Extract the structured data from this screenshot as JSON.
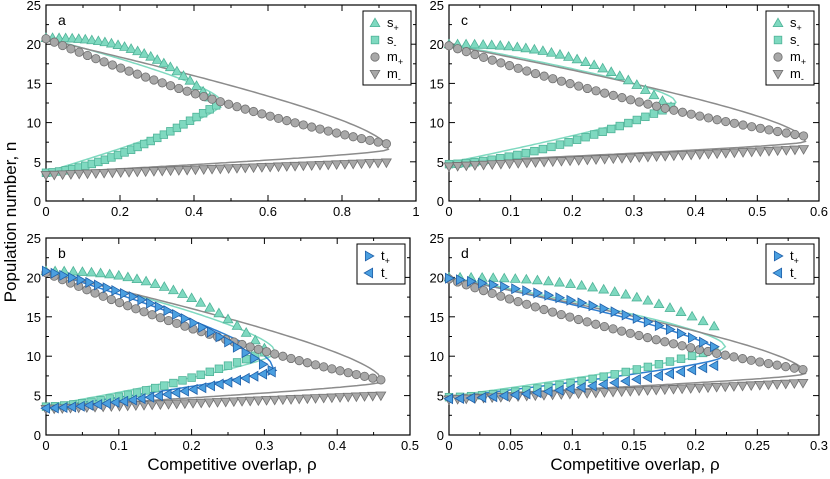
{
  "figure": {
    "ylabel": "Population number, n",
    "xlabel": "Competitive overlap, ρ"
  },
  "colors": {
    "teal": "#7fd9c0",
    "teal_stroke": "#4fb398",
    "gray": "#a8a8a8",
    "gray_stroke": "#707070",
    "gray_line": "#8c8c8c",
    "blue": "#4a9fe0",
    "blue_stroke": "#1f5fa8",
    "blue_line": "#2f7fd0"
  },
  "chart_data": [
    {
      "id": "a",
      "type": "scatter",
      "letter": "a",
      "xlim": [
        0,
        1
      ],
      "ylim": [
        0,
        25
      ],
      "xticks": [
        0,
        0.2,
        0.4,
        0.6,
        0.8,
        1
      ],
      "xtick_labels": [
        "0",
        "0.2",
        "0.4",
        "0.6",
        "0.8",
        "1"
      ],
      "yticks": [
        0,
        5,
        10,
        15,
        20,
        25
      ],
      "ytick_labels": [
        "0",
        "5",
        "10",
        "15",
        "20",
        "25"
      ],
      "series": [
        {
          "key": "s_plus",
          "label": "s",
          "sub": "+",
          "marker": "triangle-up",
          "color": "teal",
          "values": {
            "n": 27,
            "x0": 0,
            "x1": 0.46,
            "y0": 20.8,
            "y1": 12.4,
            "shape": "upper"
          }
        },
        {
          "key": "s_minus",
          "label": "s",
          "sub": "-",
          "marker": "square",
          "color": "teal",
          "values": {
            "n": 27,
            "x0": 0,
            "x1": 0.46,
            "y0": 3.6,
            "y1": 12.2,
            "shape": "lower"
          }
        },
        {
          "key": "m_plus",
          "label": "m",
          "sub": "+",
          "marker": "circle",
          "color": "gray",
          "values": {
            "n": 42,
            "x0": 0,
            "x1": 0.92,
            "y0": 20.7,
            "y1": 7.3,
            "shape": "decay"
          }
        },
        {
          "key": "m_minus",
          "label": "m",
          "sub": "-",
          "marker": "triangle-down",
          "color": "gray",
          "values": {
            "n": 42,
            "x0": 0,
            "x1": 0.92,
            "y0": 3.3,
            "y1": 4.9,
            "shape": "linear"
          }
        }
      ],
      "curves": [
        {
          "color": "teal",
          "x0": 0,
          "turn": 0.475,
          "y_up": 20.8,
          "y_lo": 3.7,
          "y_turn": 12.5
        },
        {
          "color": "gray",
          "x0": 0,
          "turn": 0.925,
          "y_up": 20.6,
          "y_lo": 3.6,
          "y_turn": 6.6
        }
      ],
      "legend": [
        "s_plus",
        "s_minus",
        "m_plus",
        "m_minus"
      ]
    },
    {
      "id": "c",
      "type": "scatter",
      "letter": "c",
      "xlim": [
        0,
        0.6
      ],
      "ylim": [
        0,
        25
      ],
      "xticks": [
        0,
        0.1,
        0.2,
        0.3,
        0.4,
        0.5,
        0.6
      ],
      "xtick_labels": [
        "0",
        "0.1",
        "0.2",
        "0.3",
        "0.4",
        "0.5",
        "0.6"
      ],
      "yticks": [
        0,
        5,
        10,
        15,
        20,
        25
      ],
      "ytick_labels": [
        "0",
        "5",
        "10",
        "15",
        "20",
        "25"
      ],
      "series": [
        {
          "key": "s_plus",
          "label": "s",
          "sub": "+",
          "marker": "triangle-up",
          "color": "teal",
          "values": {
            "n": 27,
            "x0": 0,
            "x1": 0.36,
            "y0": 20.0,
            "y1": 12.0,
            "shape": "upper"
          }
        },
        {
          "key": "s_minus",
          "label": "s",
          "sub": "-",
          "marker": "square",
          "color": "teal",
          "values": {
            "n": 27,
            "x0": 0,
            "x1": 0.36,
            "y0": 4.7,
            "y1": 12.0,
            "shape": "lower"
          }
        },
        {
          "key": "m_plus",
          "label": "m",
          "sub": "+",
          "marker": "circle",
          "color": "gray",
          "values": {
            "n": 42,
            "x0": 0,
            "x1": 0.575,
            "y0": 19.8,
            "y1": 8.3,
            "shape": "decay"
          }
        },
        {
          "key": "m_minus",
          "label": "m",
          "sub": "-",
          "marker": "triangle-down",
          "color": "gray",
          "values": {
            "n": 42,
            "x0": 0,
            "x1": 0.575,
            "y0": 4.4,
            "y1": 6.6,
            "shape": "linear"
          }
        }
      ],
      "curves": [
        {
          "color": "teal",
          "x0": 0,
          "turn": 0.368,
          "y_up": 20.0,
          "y_lo": 4.9,
          "y_turn": 12.6
        },
        {
          "color": "gray",
          "x0": 0,
          "turn": 0.578,
          "y_up": 19.9,
          "y_lo": 5.0,
          "y_turn": 7.6
        }
      ],
      "legend": [
        "s_plus",
        "s_minus",
        "m_plus",
        "m_minus"
      ]
    },
    {
      "id": "b",
      "type": "scatter",
      "letter": "b",
      "xlim": [
        0,
        0.5
      ],
      "ylim": [
        0,
        25
      ],
      "xticks": [
        0,
        0.1,
        0.2,
        0.3,
        0.4,
        0.5
      ],
      "xtick_labels": [
        "0",
        "0.1",
        "0.2",
        "0.3",
        "0.4",
        "0.5"
      ],
      "yticks": [
        0,
        5,
        10,
        15,
        20,
        25
      ],
      "ytick_labels": [
        "0",
        "5",
        "10",
        "15",
        "20",
        "25"
      ],
      "series": [
        {
          "key": "s_plus",
          "label": "s",
          "sub": "+",
          "marker": "triangle-up",
          "color": "teal",
          "values": {
            "n": 25,
            "x0": 0,
            "x1": 0.3,
            "y0": 20.8,
            "y1": 11.0,
            "shape": "upper"
          }
        },
        {
          "key": "s_minus",
          "label": "s",
          "sub": "-",
          "marker": "square",
          "color": "teal",
          "values": {
            "n": 25,
            "x0": 0,
            "x1": 0.3,
            "y0": 3.6,
            "y1": 10.5,
            "shape": "lower"
          }
        },
        {
          "key": "m_plus",
          "label": "m",
          "sub": "+",
          "marker": "circle",
          "color": "gray",
          "values": {
            "n": 42,
            "x0": 0,
            "x1": 0.46,
            "y0": 20.6,
            "y1": 7.0,
            "shape": "decay"
          }
        },
        {
          "key": "m_minus",
          "label": "m",
          "sub": "-",
          "marker": "triangle-down",
          "color": "gray",
          "values": {
            "n": 42,
            "x0": 0,
            "x1": 0.46,
            "y0": 3.3,
            "y1": 5.0,
            "shape": "linear"
          }
        },
        {
          "key": "t_plus",
          "label": "t",
          "sub": "+",
          "marker": "triangle-right",
          "color": "blue",
          "values": {
            "n": 27,
            "x0": 0,
            "x1": 0.31,
            "y0": 20.8,
            "y1": 8.2,
            "shape": "upper_lin"
          }
        },
        {
          "key": "t_minus",
          "label": "t",
          "sub": "-",
          "marker": "triangle-left",
          "color": "blue",
          "values": {
            "n": 27,
            "x0": 0,
            "x1": 0.31,
            "y0": 3.4,
            "y1": 8.0,
            "shape": "lower"
          }
        }
      ],
      "curves": [
        {
          "color": "teal",
          "x0": 0,
          "turn": 0.315,
          "y_up": 20.8,
          "y_lo": 3.7,
          "y_turn": 10.5
        },
        {
          "color": "blue",
          "x0": 0,
          "turn": 0.312,
          "y_up": 20.8,
          "y_lo": 3.5,
          "y_turn": 8.5
        },
        {
          "color": "gray",
          "x0": 0,
          "turn": 0.462,
          "y_up": 20.6,
          "y_lo": 3.6,
          "y_turn": 6.8
        }
      ],
      "legend": [
        "t_plus",
        "t_minus"
      ]
    },
    {
      "id": "d",
      "type": "scatter",
      "letter": "d",
      "xlim": [
        0,
        0.3
      ],
      "ylim": [
        0,
        25
      ],
      "xticks": [
        0,
        0.05,
        0.1,
        0.15,
        0.2,
        0.25,
        0.3
      ],
      "xtick_labels": [
        "0",
        "0.05",
        "0.1",
        "0.15",
        "0.2",
        "0.25",
        "0.3"
      ],
      "yticks": [
        0,
        5,
        10,
        15,
        20,
        25
      ],
      "ytick_labels": [
        "0",
        "5",
        "10",
        "15",
        "20",
        "25"
      ],
      "series": [
        {
          "key": "s_plus",
          "label": "s",
          "sub": "+",
          "marker": "triangle-up",
          "color": "teal",
          "values": {
            "n": 25,
            "x0": 0,
            "x1": 0.215,
            "y0": 20.0,
            "y1": 13.8,
            "shape": "upper"
          }
        },
        {
          "key": "s_minus",
          "label": "s",
          "sub": "-",
          "marker": "square",
          "color": "teal",
          "values": {
            "n": 25,
            "x0": 0,
            "x1": 0.215,
            "y0": 4.8,
            "y1": 10.8,
            "shape": "lower"
          }
        },
        {
          "key": "m_plus",
          "label": "m",
          "sub": "+",
          "marker": "circle",
          "color": "gray",
          "values": {
            "n": 42,
            "x0": 0,
            "x1": 0.287,
            "y0": 19.8,
            "y1": 8.3,
            "shape": "decay"
          }
        },
        {
          "key": "m_minus",
          "label": "m",
          "sub": "-",
          "marker": "triangle-down",
          "color": "gray",
          "values": {
            "n": 42,
            "x0": 0,
            "x1": 0.287,
            "y0": 4.5,
            "y1": 6.6,
            "shape": "linear"
          }
        },
        {
          "key": "t_plus",
          "label": "t",
          "sub": "+",
          "marker": "triangle-right",
          "color": "blue",
          "values": {
            "n": 25,
            "x0": 0,
            "x1": 0.215,
            "y0": 19.9,
            "y1": 11.2,
            "shape": "upper_lin"
          }
        },
        {
          "key": "t_minus",
          "label": "t",
          "sub": "-",
          "marker": "triangle-left",
          "color": "blue",
          "values": {
            "n": 25,
            "x0": 0,
            "x1": 0.215,
            "y0": 4.6,
            "y1": 8.8,
            "shape": "lower"
          }
        }
      ],
      "curves": [
        {
          "color": "teal",
          "x0": 0,
          "turn": 0.224,
          "y_up": 20.0,
          "y_lo": 4.9,
          "y_turn": 11.2
        },
        {
          "color": "blue",
          "x0": 0,
          "turn": 0.222,
          "y_up": 20.0,
          "y_lo": 4.8,
          "y_turn": 10.0
        },
        {
          "color": "gray",
          "x0": 0,
          "turn": 0.289,
          "y_up": 19.9,
          "y_lo": 5.0,
          "y_turn": 7.8
        }
      ],
      "legend": [
        "t_plus",
        "t_minus"
      ]
    }
  ]
}
